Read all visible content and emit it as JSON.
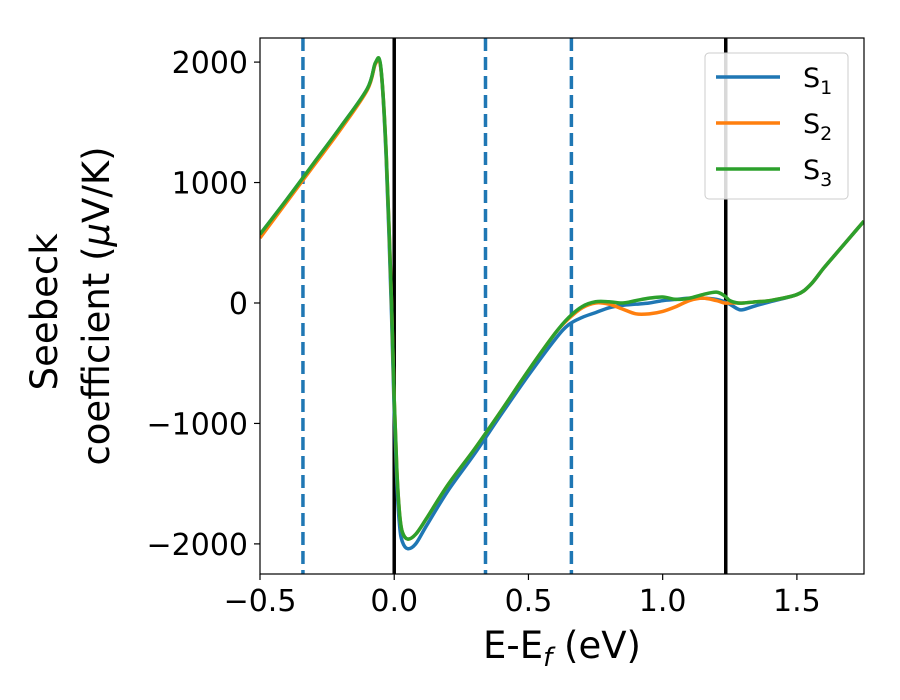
{
  "chart_data": {
    "type": "line",
    "xlabel": "E-E",
    "xlabel_sub": "f",
    "xlabel_unit": " (eV)",
    "ylabel_line1": "Seebeck",
    "ylabel_line2_pre": "coefficient  (",
    "ylabel_mu": "μ",
    "ylabel_line2_post": "V/K)",
    "xlim": [
      -0.5,
      1.75
    ],
    "ylim": [
      -2250,
      2200
    ],
    "xticks": [
      -0.5,
      0.0,
      0.5,
      1.0,
      1.5
    ],
    "xtick_labels": [
      "−0.5",
      "0.0",
      "0.5",
      "1.0",
      "1.5"
    ],
    "yticks": [
      -2000,
      -1000,
      0,
      1000,
      2000
    ],
    "ytick_labels": [
      "−2000",
      "−1000",
      "0",
      "1000",
      "2000"
    ],
    "grid": false,
    "legend_position": "top-right",
    "series": [
      {
        "name": "S",
        "name_sub": "1",
        "color": "#1f77b4",
        "x": [
          -0.5,
          -0.4,
          -0.3,
          -0.2,
          -0.1,
          -0.07,
          -0.05,
          -0.03,
          -0.01,
          0.0,
          0.01,
          0.02,
          0.03,
          0.05,
          0.08,
          0.12,
          0.2,
          0.3,
          0.4,
          0.5,
          0.6,
          0.65,
          0.7,
          0.75,
          0.8,
          0.85,
          0.9,
          0.95,
          1.0,
          1.05,
          1.1,
          1.15,
          1.2,
          1.23,
          1.25,
          1.28,
          1.3,
          1.35,
          1.4,
          1.5,
          1.55,
          1.6,
          1.65,
          1.7,
          1.75
        ],
        "y": [
          570,
          860,
          1160,
          1460,
          1780,
          1990,
          1950,
          1200,
          -100,
          -900,
          -1500,
          -1850,
          -1980,
          -2040,
          -2000,
          -1850,
          -1560,
          -1250,
          -920,
          -600,
          -300,
          -180,
          -120,
          -80,
          -40,
          -20,
          -10,
          0,
          20,
          30,
          40,
          40,
          30,
          10,
          -10,
          -50,
          -55,
          -20,
          10,
          70,
          150,
          290,
          420,
          550,
          680
        ]
      },
      {
        "name": "S",
        "name_sub": "2",
        "color": "#ff7f0e",
        "x": [
          -0.5,
          -0.4,
          -0.3,
          -0.2,
          -0.1,
          -0.07,
          -0.05,
          -0.03,
          -0.01,
          0.0,
          0.01,
          0.02,
          0.03,
          0.05,
          0.08,
          0.12,
          0.2,
          0.3,
          0.4,
          0.5,
          0.6,
          0.65,
          0.7,
          0.75,
          0.8,
          0.85,
          0.9,
          0.95,
          1.0,
          1.05,
          1.1,
          1.15,
          1.2,
          1.23,
          1.25,
          1.28,
          1.3,
          1.35,
          1.4,
          1.5,
          1.55,
          1.6,
          1.65,
          1.7,
          1.75
        ],
        "y": [
          540,
          840,
          1140,
          1440,
          1770,
          1985,
          1950,
          1250,
          0,
          -800,
          -1400,
          -1750,
          -1900,
          -1960,
          -1920,
          -1790,
          -1510,
          -1210,
          -890,
          -560,
          -250,
          -130,
          -40,
          0,
          -10,
          -50,
          -90,
          -90,
          -70,
          -30,
          20,
          40,
          20,
          0,
          0,
          0,
          0,
          10,
          20,
          70,
          150,
          290,
          420,
          550,
          680
        ]
      },
      {
        "name": "S",
        "name_sub": "3",
        "color": "#2ca02c",
        "x": [
          -0.5,
          -0.4,
          -0.3,
          -0.2,
          -0.1,
          -0.07,
          -0.05,
          -0.03,
          -0.01,
          0.0,
          0.01,
          0.02,
          0.03,
          0.05,
          0.08,
          0.12,
          0.2,
          0.3,
          0.4,
          0.5,
          0.6,
          0.65,
          0.7,
          0.75,
          0.8,
          0.85,
          0.9,
          0.95,
          1.0,
          1.05,
          1.1,
          1.15,
          1.2,
          1.23,
          1.25,
          1.28,
          1.3,
          1.35,
          1.4,
          1.5,
          1.55,
          1.6,
          1.65,
          1.7,
          1.75
        ],
        "y": [
          570,
          860,
          1160,
          1460,
          1780,
          1995,
          1960,
          1250,
          0,
          -800,
          -1400,
          -1750,
          -1900,
          -1960,
          -1920,
          -1790,
          -1510,
          -1210,
          -890,
          -560,
          -250,
          -120,
          -30,
          10,
          10,
          0,
          20,
          40,
          50,
          30,
          40,
          70,
          90,
          60,
          20,
          0,
          0,
          10,
          20,
          70,
          150,
          290,
          420,
          550,
          680
        ]
      }
    ],
    "vlines": [
      {
        "x": -0.34,
        "style": "dashed",
        "color": "#1f77b4"
      },
      {
        "x": 0.0,
        "style": "solid",
        "color": "#000000"
      },
      {
        "x": 0.34,
        "style": "dashed",
        "color": "#1f77b4"
      },
      {
        "x": 0.66,
        "style": "dashed",
        "color": "#1f77b4"
      },
      {
        "x": 1.235,
        "style": "solid",
        "color": "#000000"
      }
    ]
  }
}
